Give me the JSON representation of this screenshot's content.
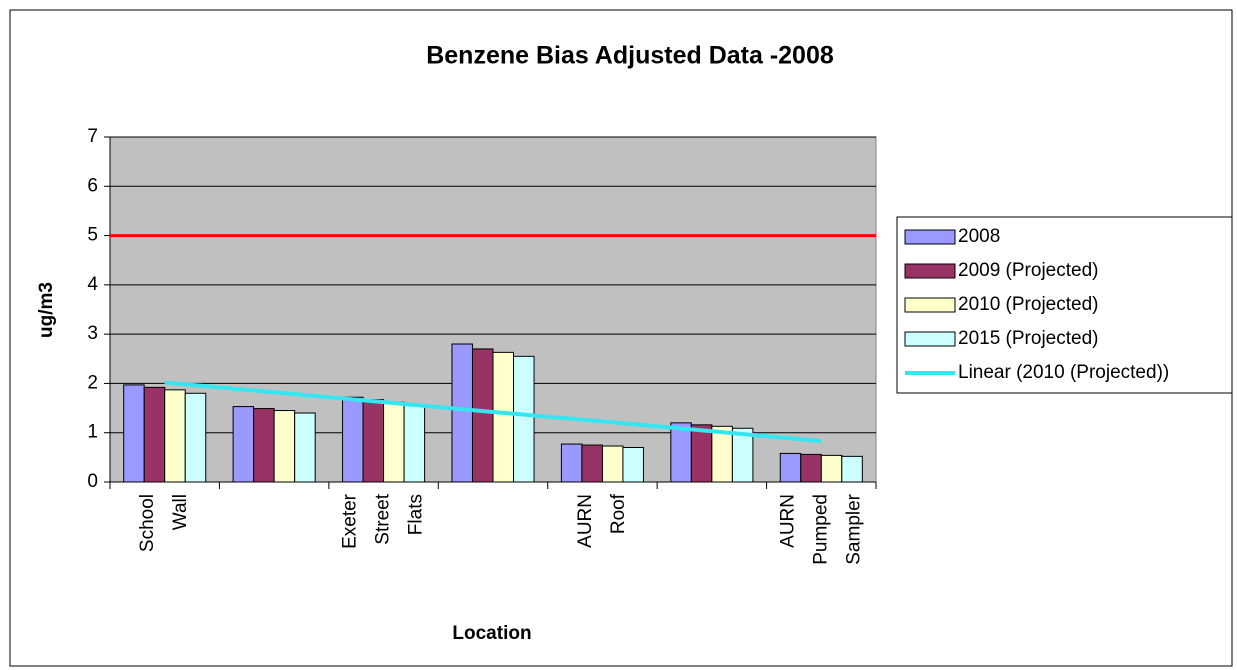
{
  "chart_data": {
    "type": "bar",
    "title": "Benzene Bias Adjusted Data -2008",
    "x_label": "Location",
    "y_label": "ug/m3",
    "categories": [
      "School Wall",
      null,
      "Exeter Street Flats",
      null,
      "AURN Roof",
      null,
      "AURN Pumped Sampler"
    ],
    "series": [
      {
        "name": "2008",
        "color": "#9999ff",
        "values": [
          1.97,
          1.53,
          1.72,
          2.8,
          0.77,
          1.2,
          0.58
        ]
      },
      {
        "name": "2009 (Projected)",
        "color": "#993366",
        "values": [
          1.92,
          1.49,
          1.67,
          2.7,
          0.75,
          1.16,
          0.56
        ]
      },
      {
        "name": "2010 (Projected)",
        "color": "#ffffcc",
        "values": [
          1.87,
          1.45,
          1.62,
          2.63,
          0.73,
          1.13,
          0.54
        ]
      },
      {
        "name": "2015 (Projected)",
        "color": "#ccffff",
        "values": [
          1.8,
          1.4,
          1.57,
          2.55,
          0.7,
          1.09,
          0.52
        ]
      },
      {
        "name": "Linear (2010 (Projected))",
        "color": "#33e6f0",
        "type": "line",
        "values": [
          2.02,
          1.82,
          1.62,
          1.42,
          1.23,
          1.03,
          0.83
        ]
      }
    ],
    "reference_line": {
      "value": 5,
      "color": "#ff0000"
    },
    "ylim": [
      0,
      7
    ],
    "yticks": [
      0,
      1,
      2,
      3,
      4,
      5,
      6,
      7
    ],
    "grid": true,
    "plot_background": "#c0c0c0",
    "legend": "right"
  }
}
